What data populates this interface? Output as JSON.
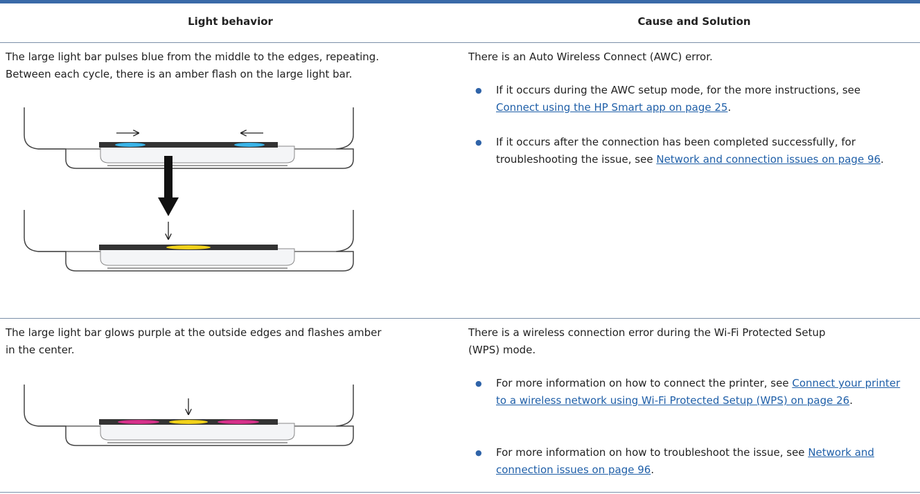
{
  "table": {
    "headers": [
      "Light behavior",
      "Cause and Solution"
    ],
    "rows": [
      {
        "behavior": [
          "The large light bar pulses blue from the middle to the edges, repeating.",
          "Between each cycle, there is an amber flash on the large light bar."
        ],
        "cause": [
          "There is an Auto Wireless Connect (AWC) error."
        ],
        "bullets": [
          {
            "text": "If it occurs during the AWC setup mode, for the more instructions, see ",
            "link": "Connect using the HP Smart app on page 25",
            "after": "."
          },
          {
            "text": "If it occurs after the connection has been completed successfully, for troubleshooting the issue, see ",
            "link": "Network and connection issues on page 96",
            "after": "."
          }
        ]
      },
      {
        "behavior": [
          "The large light bar glows purple at the outside edges and flashes amber",
          "in the center."
        ],
        "cause": [
          "There is a wireless connection error during the Wi-Fi Protected Setup",
          "(WPS) mode."
        ],
        "bullets": [
          {
            "text": "For more information on how to connect the printer, see ",
            "link": "Connect your printer to a wireless network using Wi-Fi Protected Setup (WPS) on page 26",
            "after": "."
          },
          {
            "text": "For more information on how to troubleshoot the issue, see ",
            "link": "Network and connection issues on page 96",
            "after": "."
          }
        ]
      }
    ]
  }
}
